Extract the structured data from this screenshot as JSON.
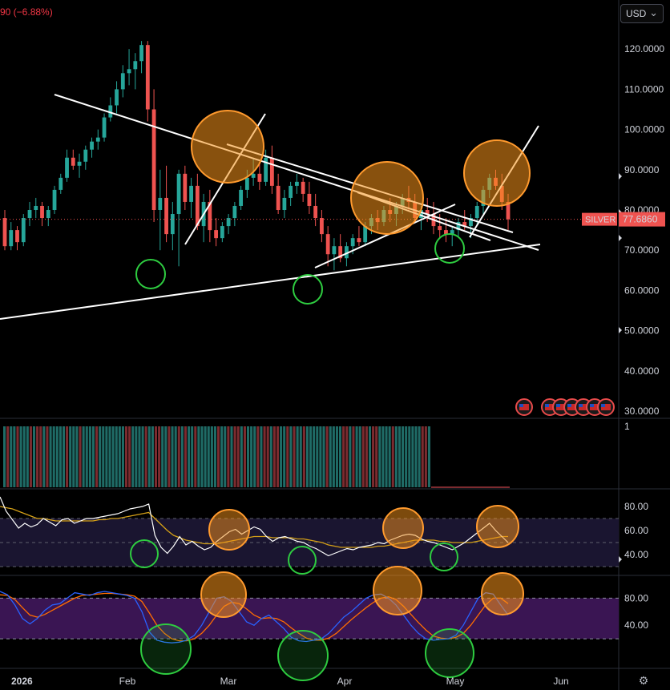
{
  "header": {
    "change_text": "90 (−6.88%)"
  },
  "currency": {
    "label": "USD"
  },
  "price_badge": {
    "symbol": "SILVER",
    "value": "77.6860"
  },
  "colors": {
    "up": "#26a69a",
    "down": "#ef5350",
    "accent_orange": "#f7931a",
    "green_circle": "#2ecc40",
    "trendline": "#ffffff"
  },
  "icons": {
    "currency_chevron": "chevron-down-icon",
    "settings": "gear-icon",
    "flags": "us-flag-icon"
  },
  "chart_data": [
    {
      "type": "candlestick",
      "symbol": "SILVER",
      "currency": "USD",
      "last_value": 77.686,
      "ylim": [
        28.5,
        130
      ],
      "y_ticks": [
        "120.0000",
        "110.0000",
        "100.0000",
        "90.0000",
        "80.0000",
        "70.0000",
        "60.0000",
        "50.0000",
        "40.0000",
        "30.0000"
      ],
      "x_tick_labels": [
        "2026",
        "Feb",
        "Mar",
        "Apr",
        "May",
        "Jun"
      ],
      "candles": [
        [
          78,
          80,
          70,
          71
        ],
        [
          71,
          77,
          70,
          75
        ],
        [
          75,
          76,
          70,
          72
        ],
        [
          72,
          79,
          71,
          78
        ],
        [
          78,
          82,
          76,
          80
        ],
        [
          80,
          83,
          78,
          81
        ],
        [
          81,
          82,
          76,
          78
        ],
        [
          78,
          81,
          76,
          80
        ],
        [
          80,
          86,
          79,
          85
        ],
        [
          85,
          89,
          84,
          88
        ],
        [
          88,
          95,
          87,
          93
        ],
        [
          93,
          95,
          90,
          91
        ],
        [
          91,
          94,
          88,
          92
        ],
        [
          92,
          96,
          90,
          95
        ],
        [
          95,
          98,
          93,
          97
        ],
        [
          97,
          100,
          95,
          98
        ],
        [
          98,
          104,
          97,
          103
        ],
        [
          103,
          108,
          102,
          106
        ],
        [
          106,
          112,
          104,
          110
        ],
        [
          110,
          116,
          108,
          114
        ],
        [
          114,
          120,
          111,
          115
        ],
        [
          115,
          119,
          110,
          117
        ],
        [
          117,
          122,
          114,
          121
        ],
        [
          121,
          122,
          102,
          105
        ],
        [
          105,
          110,
          77,
          80
        ],
        [
          80,
          90,
          70,
          83
        ],
        [
          83,
          91,
          72,
          74
        ],
        [
          74,
          82,
          70,
          79
        ],
        [
          79,
          90,
          66,
          89
        ],
        [
          89,
          91,
          80,
          82
        ],
        [
          82,
          88,
          78,
          86
        ],
        [
          86,
          89,
          75,
          76
        ],
        [
          76,
          84,
          72,
          82
        ],
        [
          82,
          85,
          72,
          75
        ],
        [
          75,
          78,
          71,
          73
        ],
        [
          73,
          77,
          72,
          76
        ],
        [
          76,
          79,
          74,
          78
        ],
        [
          78,
          82,
          76,
          81
        ],
        [
          81,
          86,
          80,
          85
        ],
        [
          85,
          90,
          83,
          88
        ],
        [
          88,
          93,
          86,
          89
        ],
        [
          89,
          92,
          85,
          87
        ],
        [
          87,
          95,
          86,
          93
        ],
        [
          93,
          96,
          84,
          86
        ],
        [
          86,
          89,
          79,
          80
        ],
        [
          80,
          85,
          78,
          83
        ],
        [
          83,
          87,
          81,
          86
        ],
        [
          86,
          89,
          84,
          87
        ],
        [
          87,
          88,
          82,
          84
        ],
        [
          84,
          87,
          79,
          81
        ],
        [
          81,
          84,
          76,
          78
        ],
        [
          78,
          80,
          72,
          74
        ],
        [
          74,
          76,
          66,
          69
        ],
        [
          69,
          73,
          65,
          71
        ],
        [
          71,
          74,
          67,
          68
        ],
        [
          68,
          72,
          66,
          71
        ],
        [
          71,
          74,
          69,
          73
        ],
        [
          73,
          76,
          71,
          72
        ],
        [
          72,
          77,
          71,
          76
        ],
        [
          76,
          79,
          74,
          78
        ],
        [
          78,
          80,
          75,
          77
        ],
        [
          77,
          81,
          76,
          80
        ],
        [
          80,
          83,
          77,
          79
        ],
        [
          79,
          82,
          76,
          81
        ],
        [
          81,
          84,
          79,
          83
        ],
        [
          83,
          86,
          80,
          82
        ],
        [
          82,
          84,
          77,
          78
        ],
        [
          78,
          81,
          75,
          80
        ],
        [
          80,
          83,
          77,
          79
        ],
        [
          79,
          82,
          74,
          76
        ],
        [
          76,
          79,
          73,
          75
        ],
        [
          75,
          78,
          72,
          74
        ],
        [
          74,
          76,
          71,
          75
        ],
        [
          75,
          78,
          73,
          77
        ],
        [
          77,
          80,
          75,
          76
        ],
        [
          76,
          79,
          73,
          78
        ],
        [
          78,
          82,
          76,
          81
        ],
        [
          81,
          86,
          79,
          85
        ],
        [
          85,
          89,
          83,
          88
        ],
        [
          88,
          90,
          85,
          86
        ],
        [
          86,
          89,
          80,
          82
        ],
        [
          82,
          84,
          75,
          77.686
        ]
      ]
    },
    {
      "type": "bar",
      "name": "volume",
      "y_ticks": [
        "1"
      ]
    },
    {
      "type": "line",
      "name": "RSI",
      "y_ticks": [
        "80.00",
        "60.00",
        "40.00"
      ],
      "ylim": [
        28,
        92
      ],
      "band": [
        30,
        70
      ],
      "series": [
        {
          "values": [
            88,
            76,
            69,
            62,
            66,
            63,
            65,
            70,
            67,
            64,
            69,
            70,
            66,
            68,
            70,
            70,
            71,
            72,
            73,
            74,
            76,
            78,
            79,
            80,
            82,
            56,
            46,
            41,
            47,
            55,
            48,
            51,
            47,
            44,
            46,
            51,
            55,
            59,
            61,
            57,
            60,
            63,
            61,
            55,
            51,
            54,
            55,
            53,
            51,
            50,
            47,
            45,
            42,
            39,
            41,
            43,
            45,
            44,
            46,
            47,
            48,
            50,
            49,
            52,
            54,
            56,
            57,
            56,
            53,
            51,
            50,
            48,
            46,
            44,
            47,
            50,
            54,
            58,
            62,
            66,
            60,
            55,
            50
          ]
        },
        {
          "values": [
            80,
            79,
            78,
            76,
            74,
            72,
            70,
            70,
            69,
            68,
            68,
            68,
            68,
            68,
            68,
            68,
            69,
            69,
            70,
            70,
            71,
            72,
            73,
            74,
            75,
            70,
            65,
            60,
            56,
            54,
            52,
            51,
            50,
            49,
            49,
            49,
            50,
            51,
            52,
            53,
            54,
            55,
            55,
            55,
            54,
            54,
            54,
            54,
            53,
            53,
            52,
            51,
            50,
            48,
            47,
            46,
            46,
            46,
            46,
            46,
            46,
            47,
            47,
            48,
            49,
            50,
            51,
            52,
            52,
            52,
            52,
            51,
            51,
            50,
            50,
            50,
            50,
            51,
            52,
            53,
            54,
            55,
            55
          ]
        }
      ]
    },
    {
      "type": "line",
      "name": "Stochastic",
      "y_ticks": [
        "80.00",
        "40.00"
      ],
      "ylim": [
        0,
        100
      ],
      "band": [
        20,
        80
      ],
      "series": [
        {
          "values": [
            90,
            85,
            70,
            50,
            42,
            50,
            62,
            70,
            72,
            80,
            88,
            86,
            84,
            88,
            90,
            88,
            86,
            84,
            80,
            60,
            30,
            18,
            15,
            14,
            15,
            18,
            25,
            40,
            60,
            80,
            82,
            75,
            60,
            45,
            40,
            50,
            55,
            45,
            35,
            22,
            17,
            16,
            18,
            20,
            28,
            40,
            52,
            60,
            70,
            80,
            85,
            86,
            80,
            70,
            55,
            40,
            28,
            20,
            18,
            19,
            20,
            25,
            40,
            60,
            80,
            88,
            86,
            70,
            55
          ]
        },
        {
          "values": [
            85,
            84,
            78,
            66,
            55,
            52,
            56,
            62,
            68,
            74,
            80,
            84,
            85,
            86,
            87,
            87,
            86,
            85,
            83,
            75,
            58,
            40,
            28,
            20,
            17,
            17,
            20,
            28,
            40,
            55,
            68,
            74,
            72,
            64,
            55,
            50,
            51,
            50,
            45,
            36,
            28,
            21,
            18,
            18,
            21,
            28,
            38,
            48,
            57,
            66,
            74,
            80,
            82,
            78,
            68,
            56,
            44,
            33,
            24,
            21,
            20,
            22,
            28,
            40,
            55,
            70,
            80,
            80,
            72
          ]
        }
      ]
    }
  ]
}
